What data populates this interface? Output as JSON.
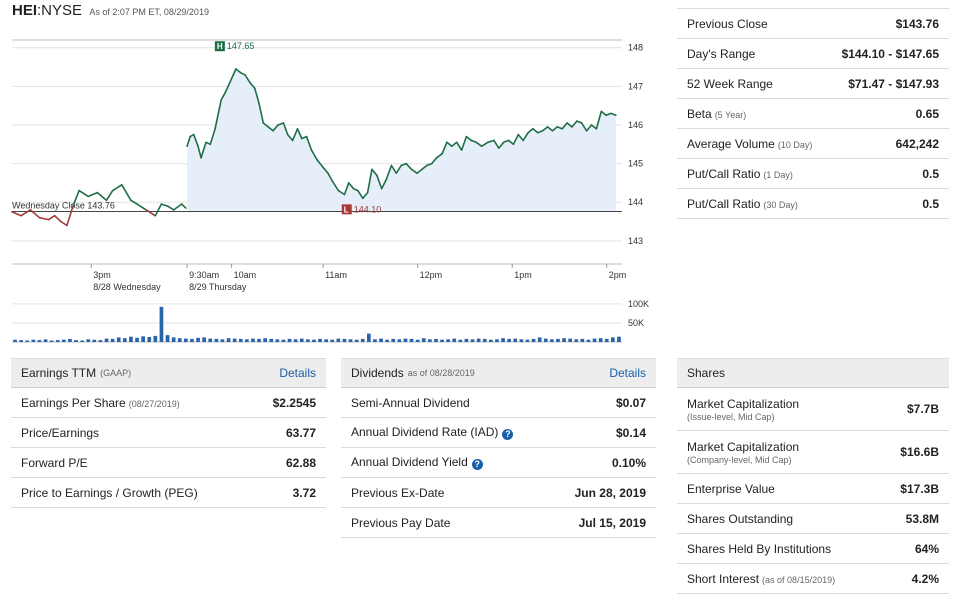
{
  "header": {
    "symbol": "HEI",
    "exchange": ":NYSE",
    "as_of": "As of 2:07 PM ET, 08/29/2019"
  },
  "colors": {
    "up_line": "#1e6e47",
    "down_line": "#a33a3a",
    "area_fill": "#e6eef9",
    "volume_bar": "#2a63a8",
    "badge_high": "#1e6e47",
    "badge_low": "#a33a3a",
    "link": "#1a5fa8"
  },
  "chart_data": {
    "type": "line",
    "title": "",
    "xlabel": "",
    "ylabel": "",
    "ylim": [
      142.4,
      148.2
    ],
    "y_ticks": [
      148,
      147,
      146,
      145,
      144,
      143
    ],
    "x_ticks": [
      {
        "t": 0.13,
        "label": "3pm",
        "sub": "8/28 Wednesday"
      },
      {
        "t": 0.287,
        "label": "9:30am",
        "sub": "8/29 Thursday"
      },
      {
        "t": 0.36,
        "label": "10am",
        "sub": ""
      },
      {
        "t": 0.51,
        "label": "11am",
        "sub": ""
      },
      {
        "t": 0.665,
        "label": "12pm",
        "sub": ""
      },
      {
        "t": 0.82,
        "label": "1pm",
        "sub": ""
      },
      {
        "t": 0.975,
        "label": "2pm",
        "sub": ""
      }
    ],
    "previous_close": {
      "label": "Wednesday Close 143.76",
      "value": 143.76
    },
    "high": {
      "label": "147.65",
      "value": 147.65
    },
    "low": {
      "label": "144.10",
      "value": 144.1
    },
    "series": [
      {
        "session": "8/28",
        "points": [
          [
            0.0,
            143.75
          ],
          [
            0.015,
            143.65
          ],
          [
            0.03,
            143.8
          ],
          [
            0.045,
            143.6
          ],
          [
            0.06,
            143.55
          ],
          [
            0.07,
            143.65
          ],
          [
            0.08,
            143.5
          ],
          [
            0.09,
            143.4
          ],
          [
            0.1,
            143.9
          ],
          [
            0.11,
            144.3
          ],
          [
            0.125,
            144.15
          ],
          [
            0.14,
            144.25
          ],
          [
            0.155,
            144.05
          ],
          [
            0.165,
            144.3
          ],
          [
            0.18,
            144.45
          ],
          [
            0.195,
            144.05
          ],
          [
            0.205,
            143.95
          ],
          [
            0.22,
            143.8
          ],
          [
            0.235,
            143.65
          ],
          [
            0.245,
            143.95
          ],
          [
            0.255,
            143.9
          ],
          [
            0.265,
            143.8
          ],
          [
            0.278,
            143.95
          ],
          [
            0.285,
            143.85
          ]
        ]
      },
      {
        "session": "8/29",
        "points": [
          [
            0.287,
            145.45
          ],
          [
            0.292,
            145.7
          ],
          [
            0.298,
            145.75
          ],
          [
            0.305,
            145.45
          ],
          [
            0.31,
            145.15
          ],
          [
            0.318,
            145.55
          ],
          [
            0.325,
            145.5
          ],
          [
            0.333,
            145.9
          ],
          [
            0.343,
            146.65
          ],
          [
            0.35,
            146.85
          ],
          [
            0.36,
            147.2
          ],
          [
            0.367,
            147.45
          ],
          [
            0.375,
            147.35
          ],
          [
            0.382,
            147.3
          ],
          [
            0.39,
            147.1
          ],
          [
            0.398,
            146.95
          ],
          [
            0.405,
            146.55
          ],
          [
            0.412,
            146.05
          ],
          [
            0.42,
            145.95
          ],
          [
            0.428,
            145.85
          ],
          [
            0.436,
            146.0
          ],
          [
            0.445,
            146.05
          ],
          [
            0.452,
            145.75
          ],
          [
            0.46,
            145.6
          ],
          [
            0.468,
            145.9
          ],
          [
            0.475,
            145.65
          ],
          [
            0.483,
            145.7
          ],
          [
            0.491,
            145.35
          ],
          [
            0.5,
            145.1
          ],
          [
            0.51,
            144.9
          ],
          [
            0.518,
            144.75
          ],
          [
            0.525,
            144.55
          ],
          [
            0.535,
            144.3
          ],
          [
            0.545,
            144.2
          ],
          [
            0.552,
            144.5
          ],
          [
            0.56,
            144.35
          ],
          [
            0.567,
            144.3
          ],
          [
            0.575,
            144.1
          ],
          [
            0.583,
            144.25
          ],
          [
            0.59,
            144.85
          ],
          [
            0.598,
            144.7
          ],
          [
            0.606,
            144.35
          ],
          [
            0.614,
            144.6
          ],
          [
            0.622,
            144.95
          ],
          [
            0.63,
            144.75
          ],
          [
            0.638,
            144.95
          ],
          [
            0.646,
            145.0
          ],
          [
            0.655,
            144.85
          ],
          [
            0.664,
            144.75
          ],
          [
            0.672,
            144.85
          ],
          [
            0.68,
            144.95
          ],
          [
            0.688,
            145.0
          ],
          [
            0.696,
            145.15
          ],
          [
            0.705,
            145.25
          ],
          [
            0.713,
            145.55
          ],
          [
            0.721,
            145.45
          ],
          [
            0.729,
            145.55
          ],
          [
            0.737,
            145.35
          ],
          [
            0.745,
            145.7
          ],
          [
            0.753,
            145.6
          ],
          [
            0.761,
            145.55
          ],
          [
            0.77,
            145.45
          ],
          [
            0.78,
            145.55
          ],
          [
            0.79,
            145.6
          ],
          [
            0.798,
            145.4
          ],
          [
            0.806,
            145.55
          ],
          [
            0.814,
            145.6
          ],
          [
            0.822,
            145.5
          ],
          [
            0.83,
            145.75
          ],
          [
            0.838,
            145.6
          ],
          [
            0.846,
            145.8
          ],
          [
            0.854,
            145.9
          ],
          [
            0.862,
            145.8
          ],
          [
            0.87,
            145.85
          ],
          [
            0.878,
            145.95
          ],
          [
            0.886,
            145.85
          ],
          [
            0.894,
            145.95
          ],
          [
            0.902,
            145.9
          ],
          [
            0.91,
            146.05
          ],
          [
            0.918,
            145.95
          ],
          [
            0.926,
            146.1
          ],
          [
            0.934,
            146.05
          ],
          [
            0.942,
            145.85
          ],
          [
            0.95,
            146.0
          ],
          [
            0.958,
            145.9
          ],
          [
            0.966,
            146.35
          ],
          [
            0.974,
            146.25
          ],
          [
            0.982,
            146.3
          ],
          [
            0.99,
            146.25
          ]
        ]
      }
    ],
    "volume": {
      "y_ticks": [
        {
          "value": 100,
          "label": "100K"
        },
        {
          "value": 50,
          "label": "50K"
        }
      ],
      "ylim": [
        0,
        110
      ],
      "bars": [
        6,
        5,
        4,
        6,
        5,
        7,
        4,
        5,
        6,
        8,
        5,
        4,
        7,
        6,
        5,
        9,
        8,
        12,
        10,
        14,
        11,
        15,
        13,
        16,
        92,
        18,
        12,
        10,
        9,
        8,
        11,
        12,
        9,
        8,
        7,
        10,
        9,
        8,
        7,
        9,
        8,
        10,
        8,
        7,
        6,
        8,
        7,
        9,
        7,
        6,
        8,
        7,
        6,
        9,
        8,
        7,
        6,
        8,
        22,
        7,
        9,
        6,
        8,
        7,
        9,
        8,
        6,
        10,
        7,
        8,
        6,
        7,
        9,
        6,
        8,
        7,
        9,
        8,
        6,
        7,
        10,
        8,
        9,
        7,
        6,
        8,
        12,
        9,
        7,
        8,
        10,
        9,
        7,
        8,
        6,
        9,
        10,
        8,
        12,
        14
      ]
    }
  },
  "quote_stats": [
    {
      "label": "Previous Close",
      "sub": "",
      "value": "$143.76"
    },
    {
      "label": "Day's Range",
      "sub": "",
      "value": "$144.10 - $147.65"
    },
    {
      "label": "52 Week Range",
      "sub": "",
      "value": "$71.47 - $147.93"
    },
    {
      "label": "Beta",
      "sub": "(5 Year)",
      "value": "0.65"
    },
    {
      "label": "Average Volume",
      "sub": "(10 Day)",
      "value": "642,242"
    },
    {
      "label": "Put/Call Ratio",
      "sub": "(1 Day)",
      "value": "0.5"
    },
    {
      "label": "Put/Call Ratio",
      "sub": "(30 Day)",
      "value": "0.5"
    }
  ],
  "earnings": {
    "title": "Earnings TTM",
    "sub": "(GAAP)",
    "details": "Details",
    "rows": [
      {
        "label": "Earnings Per Share",
        "sub": "(08/27/2019)",
        "value": "$2.2545"
      },
      {
        "label": "Price/Earnings",
        "sub": "",
        "value": "63.77"
      },
      {
        "label": "Forward P/E",
        "sub": "",
        "value": "62.88"
      },
      {
        "label": "Price to Earnings / Growth (PEG)",
        "sub": "",
        "value": "3.72"
      }
    ]
  },
  "dividends": {
    "title": "Dividends",
    "sub": "as of 08/28/2019",
    "details": "Details",
    "rows": [
      {
        "label": "Semi-Annual Dividend",
        "value": "$0.07"
      },
      {
        "label": "Annual Dividend Rate (IAD)",
        "value": "$0.14"
      },
      {
        "label": "Annual Dividend Yield",
        "value": "0.10%"
      },
      {
        "label": "Previous Ex-Date",
        "value": "Jun 28, 2019"
      },
      {
        "label": "Previous Pay Date",
        "value": "Jul 15, 2019"
      }
    ]
  },
  "shares": {
    "title": "Shares",
    "rows": [
      {
        "label": "Market Capitalization",
        "sub": "(Issue-level, Mid Cap)",
        "value": "$7.7B"
      },
      {
        "label": "Market Capitalization",
        "sub": "(Company-level, Mid Cap)",
        "value": "$16.6B"
      },
      {
        "label": "Enterprise Value",
        "sub": "",
        "value": "$17.3B"
      },
      {
        "label": "Shares Outstanding",
        "sub": "",
        "value": "53.8M"
      },
      {
        "label": "Shares Held By Institutions",
        "sub": "",
        "value": "64%"
      },
      {
        "label": "Short Interest",
        "sub": "(as of 08/15/2019)",
        "value": "4.2%"
      }
    ]
  }
}
